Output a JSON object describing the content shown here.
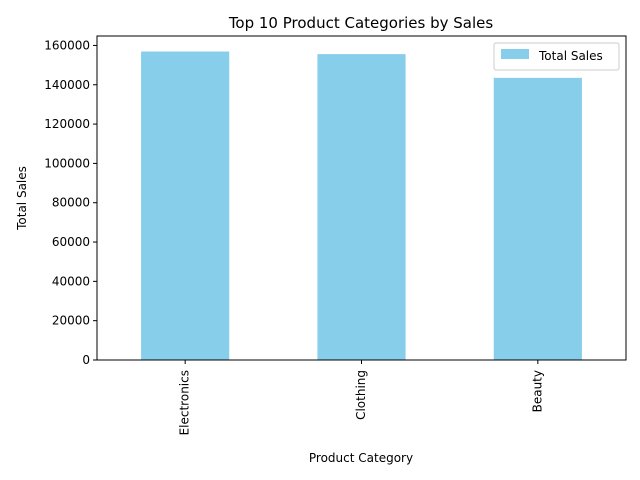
{
  "chart_data": {
    "type": "bar",
    "title": "Top 10 Product Categories by Sales",
    "xlabel": "Product Category",
    "ylabel": "Total Sales",
    "categories": [
      "Electronics",
      "Clothing",
      "Beauty"
    ],
    "series": [
      {
        "name": "Total Sales",
        "values": [
          156905,
          155580,
          143515
        ],
        "color": "#87ceeb"
      }
    ],
    "ylim": [
      0,
      164800
    ],
    "yticks": [
      0,
      20000,
      40000,
      60000,
      80000,
      100000,
      120000,
      140000,
      160000
    ],
    "grid": false,
    "legend": "top-right"
  }
}
